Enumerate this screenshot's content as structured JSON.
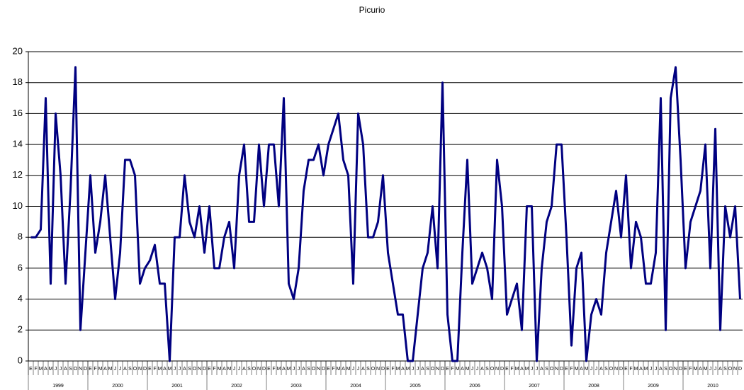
{
  "chart_data": {
    "type": "line",
    "title": "Picurio",
    "categories": [
      "E",
      "F",
      "M",
      "A",
      "M",
      "J",
      "J",
      "A",
      "S",
      "O",
      "N",
      "D",
      "E",
      "F",
      "M",
      "A",
      "M",
      "J",
      "J",
      "A",
      "S",
      "O",
      "N",
      "D",
      "E",
      "F",
      "M",
      "A",
      "M",
      "J",
      "J",
      "A",
      "S",
      "O",
      "N",
      "D",
      "E",
      "F",
      "M",
      "A",
      "M",
      "J",
      "J",
      "A",
      "S",
      "O",
      "N",
      "D",
      "E",
      "F",
      "M",
      "A",
      "M",
      "J",
      "J",
      "A",
      "S",
      "O",
      "N",
      "D",
      "E",
      "F",
      "M",
      "A",
      "M",
      "J",
      "J",
      "A",
      "S",
      "O",
      "N",
      "D",
      "E",
      "F",
      "M",
      "A",
      "M",
      "J",
      "J",
      "A",
      "S",
      "O",
      "N",
      "D",
      "E",
      "F",
      "M",
      "A",
      "M",
      "J",
      "J",
      "A",
      "S",
      "O",
      "N",
      "D",
      "E",
      "F",
      "M",
      "A",
      "M",
      "J",
      "J",
      "A",
      "S",
      "O",
      "N",
      "D",
      "E",
      "F",
      "M",
      "A",
      "M",
      "J",
      "J",
      "A",
      "S",
      "O",
      "N",
      "D",
      "E",
      "F",
      "M",
      "A",
      "M",
      "J",
      "J",
      "A",
      "S",
      "O",
      "N",
      "D",
      "E",
      "F",
      "M",
      "A",
      "M",
      "J",
      "J",
      "A",
      "S",
      "O",
      "N",
      "D"
    ],
    "groups": [
      "1999",
      "2000",
      "2001",
      "2002",
      "2003",
      "2004",
      "2005",
      "2006",
      "2007",
      "2008",
      "2009",
      "2010"
    ],
    "series": [
      {
        "name": "Picurio",
        "color": "#000080",
        "values": [
          8,
          8,
          8.5,
          17,
          5,
          16,
          12,
          5,
          11,
          19,
          2,
          7,
          12,
          7,
          9,
          12,
          8,
          4,
          7,
          13,
          13,
          12,
          5,
          6,
          6.5,
          7.5,
          5,
          5,
          0,
          8,
          8,
          12,
          9,
          8,
          10,
          7,
          10,
          6,
          6,
          8,
          9,
          6,
          12,
          14,
          9,
          9,
          14,
          10,
          14,
          14,
          10,
          17,
          5,
          4,
          6,
          11,
          13,
          13,
          14,
          12,
          14,
          15,
          16,
          13,
          12,
          5,
          16,
          14,
          8,
          8,
          9,
          12,
          7,
          5,
          3,
          3,
          0,
          0,
          3,
          6,
          7,
          10,
          6,
          18,
          3,
          0,
          0,
          7,
          13,
          5,
          6,
          7,
          6,
          4,
          13,
          10,
          3,
          4,
          5,
          2,
          10,
          10,
          0,
          6,
          9,
          10,
          14,
          14,
          8,
          1,
          6,
          7,
          0,
          3,
          4,
          3,
          7,
          9,
          11,
          8,
          12,
          6,
          9,
          8,
          5,
          5,
          7,
          17,
          2,
          17,
          19,
          13,
          6,
          9,
          10,
          11,
          14,
          6,
          15,
          2,
          10,
          8,
          10,
          4
        ]
      }
    ],
    "ylim": [
      0,
      20
    ],
    "yticks": [
      0,
      2,
      4,
      6,
      8,
      10,
      12,
      14,
      16,
      18,
      20
    ],
    "grid": true
  }
}
